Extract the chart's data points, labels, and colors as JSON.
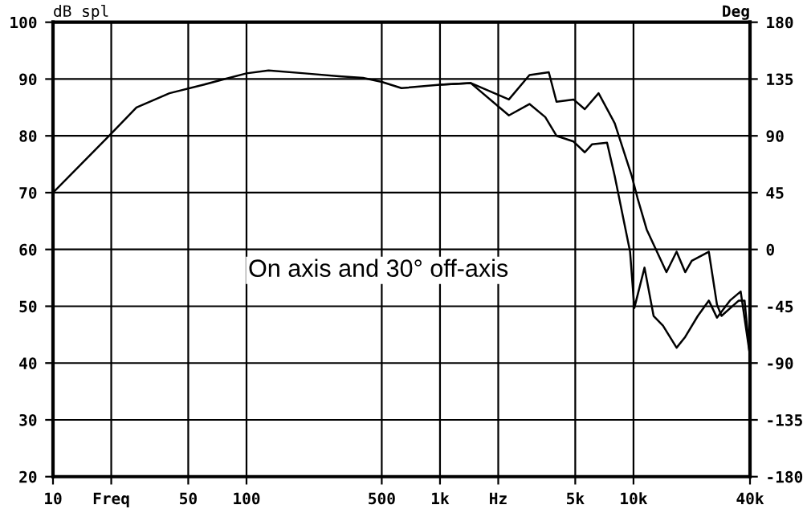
{
  "chart_data": {
    "type": "line",
    "ylabel": "dB spl",
    "y2label": "Deg",
    "log": "x",
    "xlim": [
      10,
      40000
    ],
    "ylim": [
      20,
      100
    ],
    "y2lim": [
      -180,
      180
    ],
    "xticks": [
      10,
      {
        "value": 20,
        "label": "Freq"
      },
      50,
      100,
      500,
      {
        "value": 1000,
        "label": "1k"
      },
      {
        "value": 2000,
        "label": "Hz"
      },
      {
        "value": 5000,
        "label": "5k"
      },
      {
        "value": 10000,
        "label": "10k"
      },
      {
        "value": 40000,
        "label": "40k"
      }
    ],
    "yticks": [
      20,
      30,
      40,
      50,
      60,
      70,
      80,
      90,
      100
    ],
    "y2ticks": [
      -180,
      -135,
      -90,
      -45,
      0,
      45,
      90,
      135,
      180
    ],
    "grid": true,
    "line_style": "solid",
    "marker": "none",
    "annotations": [
      "On axis and 30° off-axis"
    ],
    "series": [
      {
        "color": "#000000",
        "x": [
          10,
          19.5,
          27,
          40,
          60,
          77,
          100,
          130,
          200,
          300,
          400,
          500,
          632,
          1000,
          1440,
          2270,
          2900,
          3650,
          4000,
          4900,
          5600,
          6600,
          8000,
          9800,
          10500,
          11700,
          14800,
          16700,
          18500,
          20000,
          24500,
          27000,
          28500,
          35000,
          37500,
          40000
        ],
        "values": [
          70,
          80,
          85,
          87.5,
          89,
          90,
          91,
          91.5,
          91,
          90.5,
          90.2,
          89.5,
          88.4,
          89,
          89.3,
          86.4,
          90.7,
          91.2,
          86,
          86.4,
          84.7,
          87.5,
          82.2,
          72.9,
          69,
          63.5,
          56,
          59.6,
          56,
          58,
          59.6,
          50.3,
          48.3,
          51,
          51,
          41
        ]
      },
      {
        "color": "#000000",
        "x": [
          1000,
          1440,
          2270,
          2900,
          3500,
          4000,
          4900,
          5600,
          6100,
          7300,
          8000,
          9600,
          10100,
          11400,
          12700,
          14200,
          16700,
          18500,
          21500,
          24500,
          27000,
          31500,
          35800,
          40000
        ],
        "values": [
          89,
          89.3,
          83.6,
          85.6,
          83.3,
          80,
          79,
          77.1,
          78.5,
          78.8,
          72.9,
          59.6,
          49.7,
          56.8,
          48.3,
          46.6,
          42.7,
          44.6,
          48.3,
          51,
          48,
          51,
          52.6,
          41.3
        ]
      }
    ]
  }
}
